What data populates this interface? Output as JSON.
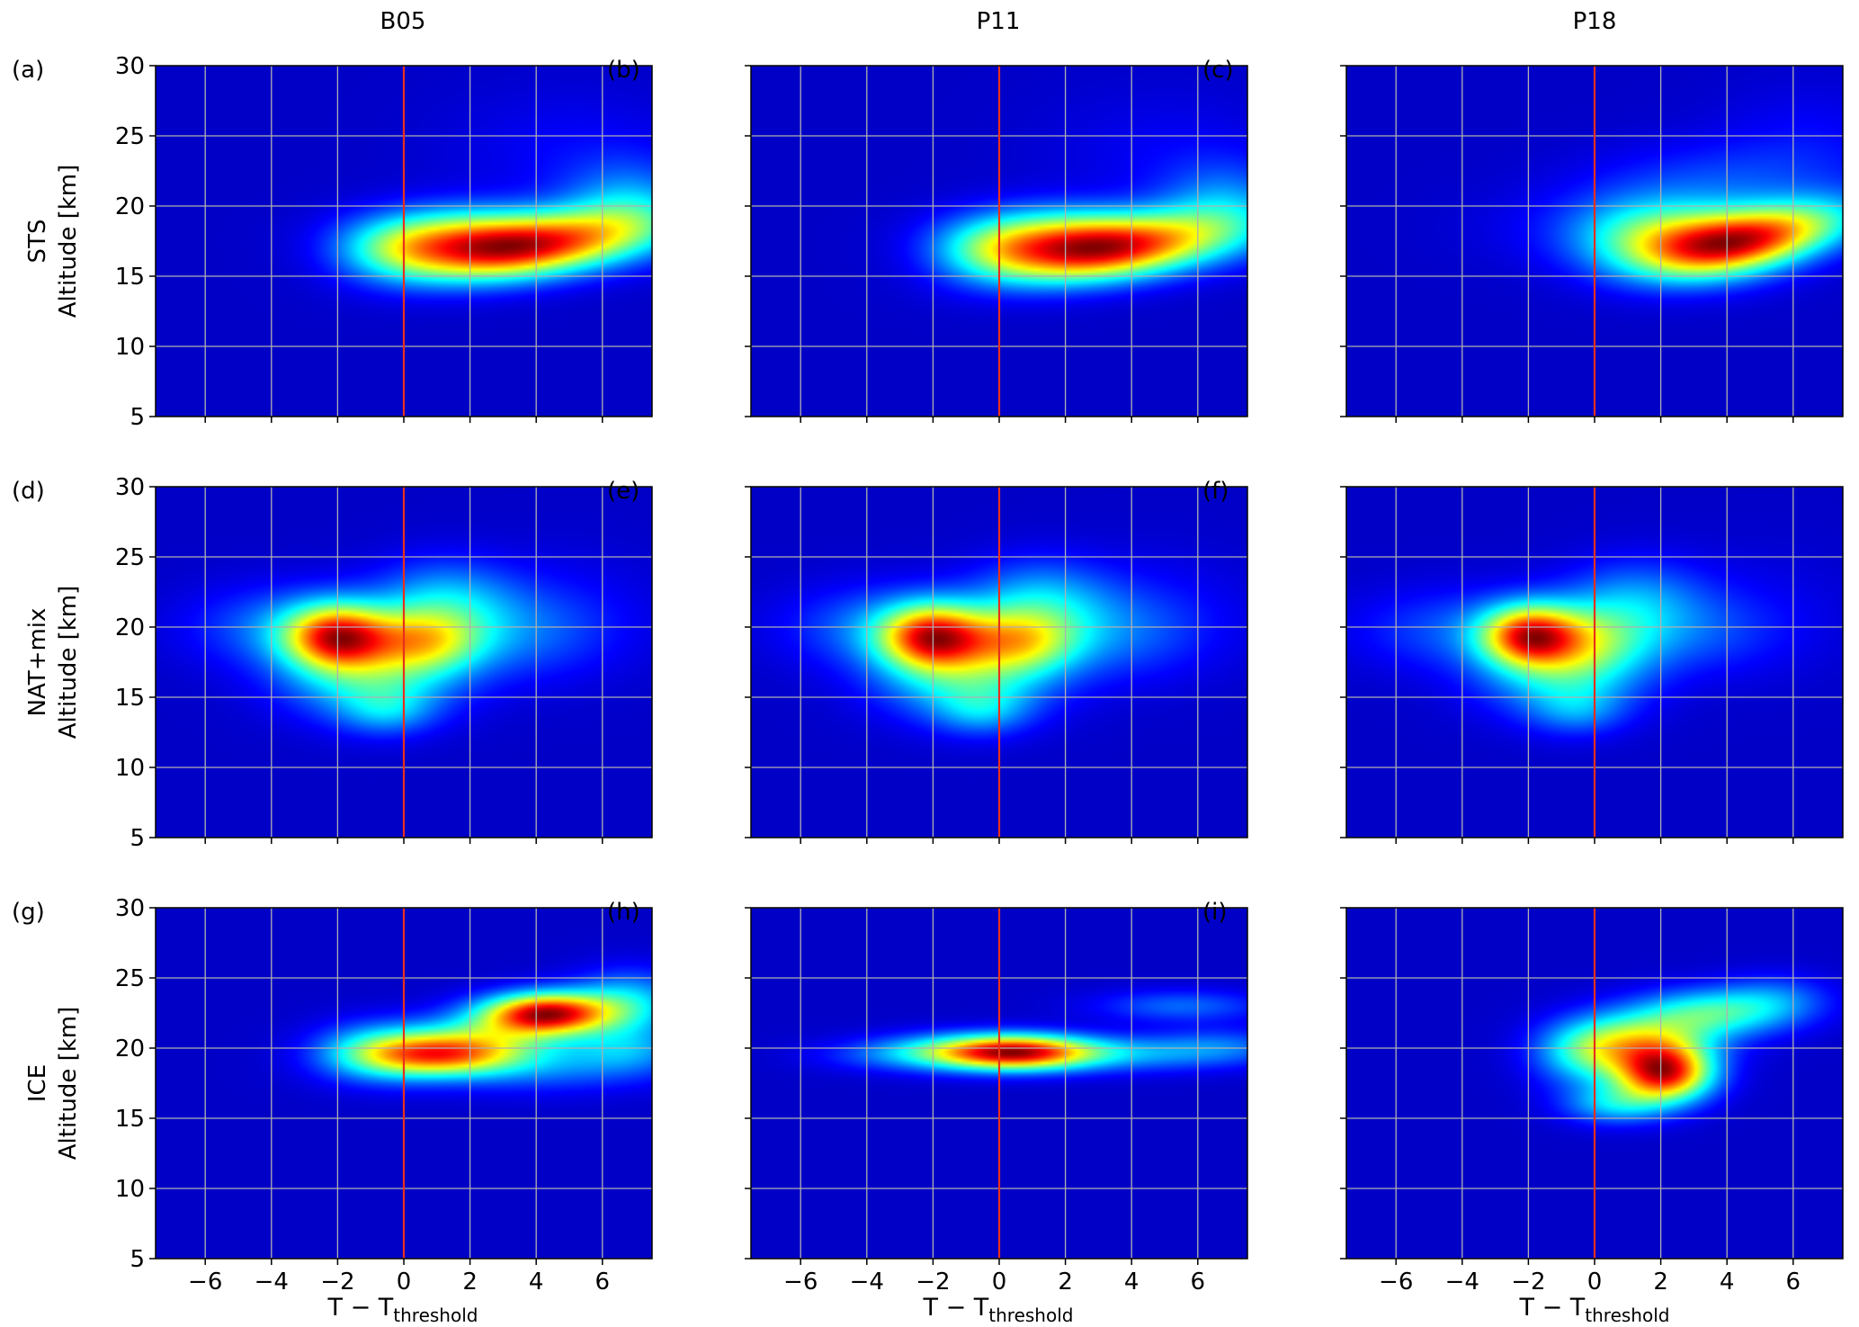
{
  "column_titles": [
    "B05",
    "P11",
    "P18"
  ],
  "row_labels": [
    "STS",
    "NAT+mix",
    "ICE"
  ],
  "ylabel": "Altitude [km]",
  "xlabel_main": "T − T",
  "xlabel_sub": "threshold",
  "colors": {
    "threshold_line": "#e8301c",
    "grid": "#b0b0b0",
    "background": "#00007f"
  },
  "colormap": "jet",
  "chart_data": [
    {
      "panel": "(a)",
      "type": "heatmap",
      "column": "B05",
      "row": "STS",
      "xlim": [
        -7.5,
        7.5
      ],
      "ylim": [
        5,
        30
      ],
      "xticks": [
        -6,
        -4,
        -2,
        0,
        2,
        4,
        6
      ],
      "yticks": [
        5,
        10,
        15,
        20,
        25,
        30
      ],
      "threshold_x": 0,
      "blobs": [
        {
          "x": 4.2,
          "y": 17.2,
          "sx": 2.4,
          "sy": 1.7,
          "w": 1.0,
          "rho": 0.45
        },
        {
          "x": 1.8,
          "y": 17.6,
          "sx": 2.0,
          "sy": 1.6,
          "w": 0.75
        },
        {
          "x": -0.2,
          "y": 16.8,
          "sx": 1.3,
          "sy": 1.5,
          "w": 0.35
        },
        {
          "x": 6.8,
          "y": 20.0,
          "sx": 1.4,
          "sy": 2.2,
          "w": 0.32
        },
        {
          "x": 5.0,
          "y": 24.0,
          "sx": 2.5,
          "sy": 3.0,
          "w": 0.08
        }
      ]
    },
    {
      "panel": "(b)",
      "type": "heatmap",
      "column": "P11",
      "row": "STS",
      "xlim": [
        -7.5,
        7.5
      ],
      "ylim": [
        5,
        30
      ],
      "xticks": [
        -6,
        -4,
        -2,
        0,
        2,
        4,
        6
      ],
      "yticks": [
        5,
        10,
        15,
        20,
        25,
        30
      ],
      "threshold_x": 0,
      "blobs": [
        {
          "x": 3.8,
          "y": 17.0,
          "sx": 2.4,
          "sy": 1.7,
          "w": 1.0,
          "rho": 0.45
        },
        {
          "x": 1.8,
          "y": 17.6,
          "sx": 2.0,
          "sy": 1.6,
          "w": 0.75
        },
        {
          "x": -0.2,
          "y": 16.8,
          "sx": 1.3,
          "sy": 1.5,
          "w": 0.35
        },
        {
          "x": 6.8,
          "y": 20.0,
          "sx": 1.4,
          "sy": 2.2,
          "w": 0.3
        },
        {
          "x": 5.0,
          "y": 24.0,
          "sx": 2.5,
          "sy": 3.0,
          "w": 0.07
        }
      ]
    },
    {
      "panel": "(c)",
      "type": "heatmap",
      "column": "P18",
      "row": "STS",
      "xlim": [
        -7.5,
        7.5
      ],
      "ylim": [
        5,
        30
      ],
      "xticks": [
        -6,
        -4,
        -2,
        0,
        2,
        4,
        6
      ],
      "yticks": [
        5,
        10,
        15,
        20,
        25,
        30
      ],
      "threshold_x": 0,
      "blobs": [
        {
          "x": 5.0,
          "y": 17.8,
          "sx": 2.0,
          "sy": 1.7,
          "w": 1.0,
          "rho": 0.5
        },
        {
          "x": 3.0,
          "y": 17.3,
          "sx": 1.8,
          "sy": 1.8,
          "w": 0.7
        },
        {
          "x": 1.2,
          "y": 18.0,
          "sx": 1.6,
          "sy": 2.0,
          "w": 0.3
        },
        {
          "x": 3.5,
          "y": 21.5,
          "sx": 2.5,
          "sy": 2.0,
          "w": 0.18
        },
        {
          "x": 6.5,
          "y": 24.0,
          "sx": 2.0,
          "sy": 3.0,
          "w": 0.1
        },
        {
          "x": -1.5,
          "y": 18.5,
          "sx": 2.0,
          "sy": 2.0,
          "w": 0.05
        }
      ]
    },
    {
      "panel": "(d)",
      "type": "heatmap",
      "column": "B05",
      "row": "NAT+mix",
      "xlim": [
        -7.5,
        7.5
      ],
      "ylim": [
        5,
        30
      ],
      "xticks": [
        -6,
        -4,
        -2,
        0,
        2,
        4,
        6
      ],
      "yticks": [
        5,
        10,
        15,
        20,
        25,
        30
      ],
      "threshold_x": 0,
      "blobs": [
        {
          "x": -2.0,
          "y": 19.3,
          "sx": 1.1,
          "sy": 1.6,
          "w": 1.0
        },
        {
          "x": 0.6,
          "y": 19.0,
          "sx": 1.2,
          "sy": 1.6,
          "w": 0.6
        },
        {
          "x": -1.0,
          "y": 16.2,
          "sx": 1.8,
          "sy": 2.0,
          "w": 0.42
        },
        {
          "x": 1.2,
          "y": 22.0,
          "sx": 1.5,
          "sy": 2.0,
          "w": 0.3
        },
        {
          "x": 3.0,
          "y": 19.5,
          "sx": 2.0,
          "sy": 2.2,
          "w": 0.2
        },
        {
          "x": -3.5,
          "y": 20.0,
          "sx": 2.0,
          "sy": 2.0,
          "w": 0.25
        },
        {
          "x": -0.5,
          "y": 14.0,
          "sx": 1.0,
          "sy": 1.2,
          "w": 0.22
        },
        {
          "x": 5.0,
          "y": 21.0,
          "sx": 2.0,
          "sy": 3.0,
          "w": 0.07
        }
      ]
    },
    {
      "panel": "(e)",
      "type": "heatmap",
      "column": "P11",
      "row": "NAT+mix",
      "xlim": [
        -7.5,
        7.5
      ],
      "ylim": [
        5,
        30
      ],
      "xticks": [
        -6,
        -4,
        -2,
        0,
        2,
        4,
        6
      ],
      "yticks": [
        5,
        10,
        15,
        20,
        25,
        30
      ],
      "threshold_x": 0,
      "blobs": [
        {
          "x": -2.0,
          "y": 19.3,
          "sx": 1.1,
          "sy": 1.6,
          "w": 1.0
        },
        {
          "x": 0.6,
          "y": 19.0,
          "sx": 1.2,
          "sy": 1.6,
          "w": 0.6
        },
        {
          "x": -1.0,
          "y": 16.2,
          "sx": 1.8,
          "sy": 2.0,
          "w": 0.42
        },
        {
          "x": 1.2,
          "y": 22.0,
          "sx": 1.5,
          "sy": 2.0,
          "w": 0.3
        },
        {
          "x": 3.0,
          "y": 19.5,
          "sx": 2.0,
          "sy": 2.2,
          "w": 0.2
        },
        {
          "x": -3.5,
          "y": 20.0,
          "sx": 2.0,
          "sy": 2.0,
          "w": 0.25
        },
        {
          "x": -0.5,
          "y": 14.0,
          "sx": 1.0,
          "sy": 1.2,
          "w": 0.22
        },
        {
          "x": 5.0,
          "y": 21.0,
          "sx": 2.0,
          "sy": 3.0,
          "w": 0.07
        }
      ]
    },
    {
      "panel": "(f)",
      "type": "heatmap",
      "column": "P18",
      "row": "NAT+mix",
      "xlim": [
        -7.5,
        7.5
      ],
      "ylim": [
        5,
        30
      ],
      "xticks": [
        -6,
        -4,
        -2,
        0,
        2,
        4,
        6
      ],
      "yticks": [
        5,
        10,
        15,
        20,
        25,
        30
      ],
      "threshold_x": 0,
      "blobs": [
        {
          "x": -2.0,
          "y": 19.4,
          "sx": 1.0,
          "sy": 1.5,
          "w": 1.0
        },
        {
          "x": -0.3,
          "y": 19.0,
          "sx": 1.3,
          "sy": 1.8,
          "w": 0.48
        },
        {
          "x": -1.0,
          "y": 16.3,
          "sx": 1.7,
          "sy": 2.0,
          "w": 0.38
        },
        {
          "x": 1.2,
          "y": 22.0,
          "sx": 1.5,
          "sy": 2.0,
          "w": 0.28
        },
        {
          "x": 2.5,
          "y": 19.5,
          "sx": 2.0,
          "sy": 2.0,
          "w": 0.18
        },
        {
          "x": -4.0,
          "y": 19.8,
          "sx": 2.2,
          "sy": 2.0,
          "w": 0.22
        },
        {
          "x": -0.5,
          "y": 14.0,
          "sx": 1.0,
          "sy": 1.2,
          "w": 0.2
        },
        {
          "x": 5.0,
          "y": 21.0,
          "sx": 2.0,
          "sy": 3.0,
          "w": 0.06
        }
      ]
    },
    {
      "panel": "(g)",
      "type": "heatmap",
      "column": "B05",
      "row": "ICE",
      "xlim": [
        -7.5,
        7.5
      ],
      "ylim": [
        5,
        30
      ],
      "xticks": [
        -6,
        -4,
        -2,
        0,
        2,
        4,
        6
      ],
      "yticks": [
        5,
        10,
        15,
        20,
        25,
        30
      ],
      "threshold_x": 0,
      "blobs": [
        {
          "x": 4.3,
          "y": 22.5,
          "sx": 1.3,
          "sy": 1.0,
          "w": 1.0
        },
        {
          "x": 1.2,
          "y": 19.5,
          "sx": 1.6,
          "sy": 1.0,
          "w": 0.62
        },
        {
          "x": 2.6,
          "y": 21.0,
          "sx": 2.2,
          "sy": 1.6,
          "w": 0.45,
          "rho": 0.5
        },
        {
          "x": -0.8,
          "y": 19.8,
          "sx": 1.3,
          "sy": 1.4,
          "w": 0.38
        },
        {
          "x": 6.8,
          "y": 23.2,
          "sx": 1.2,
          "sy": 1.6,
          "w": 0.35
        },
        {
          "x": 4.0,
          "y": 18.8,
          "sx": 2.6,
          "sy": 1.3,
          "w": 0.25
        },
        {
          "x": 6.8,
          "y": 20.0,
          "sx": 1.2,
          "sy": 1.2,
          "w": 0.22
        }
      ]
    },
    {
      "panel": "(h)",
      "type": "heatmap",
      "column": "P11",
      "row": "ICE",
      "xlim": [
        -7.5,
        7.5
      ],
      "ylim": [
        5,
        30
      ],
      "xticks": [
        -6,
        -4,
        -2,
        0,
        2,
        4,
        6
      ],
      "yticks": [
        5,
        10,
        15,
        20,
        25,
        30
      ],
      "threshold_x": 0,
      "blobs": [
        {
          "x": 0.5,
          "y": 19.7,
          "sx": 1.6,
          "sy": 0.85,
          "w": 1.0
        },
        {
          "x": -1.8,
          "y": 19.7,
          "sx": 1.6,
          "sy": 0.9,
          "w": 0.3
        },
        {
          "x": 3.8,
          "y": 19.6,
          "sx": 2.5,
          "sy": 0.9,
          "w": 0.25
        },
        {
          "x": 5.5,
          "y": 23.0,
          "sx": 1.8,
          "sy": 0.8,
          "w": 0.2
        },
        {
          "x": 6.8,
          "y": 20.2,
          "sx": 1.5,
          "sy": 0.9,
          "w": 0.15
        },
        {
          "x": -4.0,
          "y": 19.5,
          "sx": 1.5,
          "sy": 0.8,
          "w": 0.08
        }
      ]
    },
    {
      "panel": "(i)",
      "type": "heatmap",
      "column": "P18",
      "row": "ICE",
      "xlim": [
        -7.5,
        7.5
      ],
      "ylim": [
        5,
        30
      ],
      "xticks": [
        -6,
        -4,
        -2,
        0,
        2,
        4,
        6
      ],
      "yticks": [
        5,
        10,
        15,
        20,
        25,
        30
      ],
      "threshold_x": 0,
      "blobs": [
        {
          "x": 2.1,
          "y": 18.2,
          "sx": 1.0,
          "sy": 1.4,
          "w": 1.0
        },
        {
          "x": 1.4,
          "y": 20.5,
          "sx": 1.5,
          "sy": 1.4,
          "w": 0.5
        },
        {
          "x": 3.5,
          "y": 22.5,
          "sx": 1.6,
          "sy": 1.2,
          "w": 0.42
        },
        {
          "x": -0.2,
          "y": 19.5,
          "sx": 1.1,
          "sy": 1.6,
          "w": 0.35
        },
        {
          "x": 0.6,
          "y": 16.0,
          "sx": 1.1,
          "sy": 1.0,
          "w": 0.3
        },
        {
          "x": 5.5,
          "y": 23.5,
          "sx": 1.2,
          "sy": 1.2,
          "w": 0.18
        }
      ]
    }
  ]
}
